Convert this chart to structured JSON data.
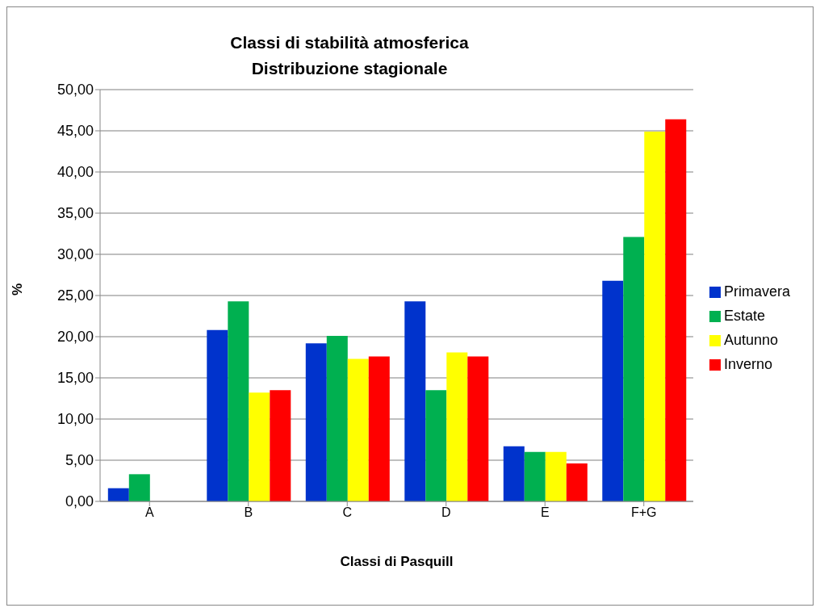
{
  "chart_data": {
    "type": "bar",
    "title": "Classi di stabilità atmosferica\nDistribuzione stagionale",
    "xlabel": "Classi di Pasquill",
    "ylabel": "%",
    "categories": [
      "A",
      "B",
      "C",
      "D",
      "E",
      "F+G"
    ],
    "series": [
      {
        "name": "Primavera",
        "color": "#0033cc",
        "values": [
          1.6,
          20.8,
          19.2,
          24.3,
          6.7,
          26.8
        ]
      },
      {
        "name": "Estate",
        "color": "#00b050",
        "values": [
          3.3,
          24.3,
          20.1,
          13.5,
          6.0,
          32.1
        ]
      },
      {
        "name": "Autunno",
        "color": "#ffff00",
        "values": [
          0,
          13.2,
          17.3,
          18.1,
          6.0,
          44.9
        ]
      },
      {
        "name": "Inverno",
        "color": "#ff0000",
        "values": [
          0,
          13.5,
          17.6,
          17.6,
          4.6,
          46.4
        ]
      }
    ],
    "ylim": [
      0,
      50
    ],
    "yticks": [
      {
        "value": 0,
        "label": "0,00"
      },
      {
        "value": 5,
        "label": "5,00"
      },
      {
        "value": 10,
        "label": "10,00"
      },
      {
        "value": 15,
        "label": "15,00"
      },
      {
        "value": 20,
        "label": "20,00"
      },
      {
        "value": 25,
        "label": "25,00"
      },
      {
        "value": 30,
        "label": "30,00"
      },
      {
        "value": 35,
        "label": "35,00"
      },
      {
        "value": 40,
        "label": "40,00"
      },
      {
        "value": 45,
        "label": "45,00"
      },
      {
        "value": 50,
        "label": "50,00"
      }
    ],
    "grid": "y",
    "legend": "right"
  }
}
